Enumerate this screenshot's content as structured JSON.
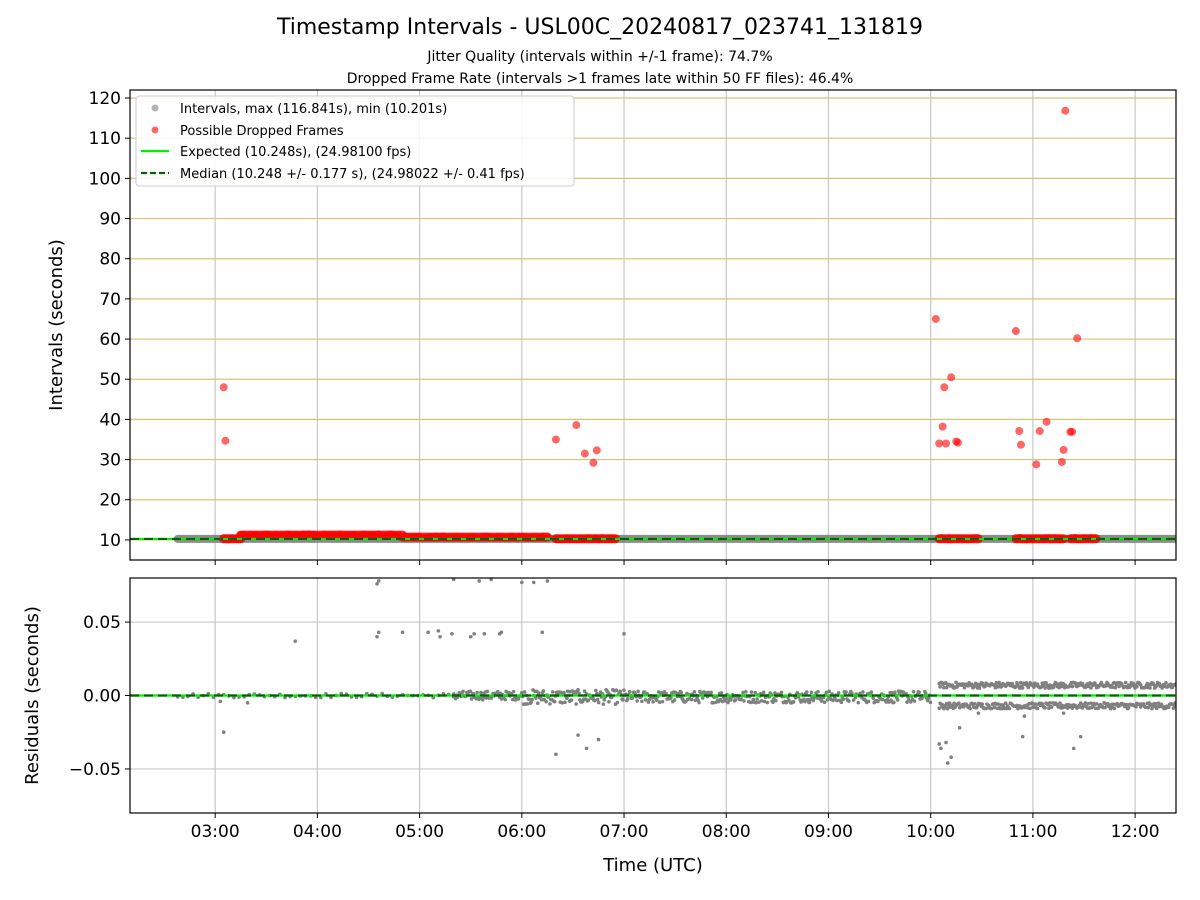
{
  "figure": {
    "title": "Timestamp Intervals - USL00C_20240817_023741_131819",
    "subtitle1": "Jitter Quality (intervals within +/-1 frame): 74.7%",
    "subtitle2": "Dropped Frame Rate (intervals >1 frames late within 50 FF files): 46.4%"
  },
  "chart_data": [
    {
      "type": "scatter",
      "ylabel": "Intervals (seconds)",
      "xlim": [
        "02:10",
        "12:24"
      ],
      "ylim": [
        5,
        122
      ],
      "xticks": [
        "03:00",
        "04:00",
        "05:00",
        "06:00",
        "07:00",
        "08:00",
        "09:00",
        "10:00",
        "11:00",
        "12:00"
      ],
      "yticks": [
        10,
        20,
        30,
        40,
        50,
        60,
        70,
        80,
        90,
        100,
        110,
        120
      ],
      "horizontal_gridlines_color": "#d4c47a",
      "vertical_gridlines_color": "#c8c8c8",
      "legend_position": "upper-left",
      "legend": [
        "Intervals, max (116.841s), min (10.201s)",
        "Possible Dropped Frames",
        "Expected (10.248s), (24.98100 fps)",
        "Median (10.248 +/- 0.177 s), (24.98022 +/- 0.41 fps)"
      ],
      "colors": {
        "intervals": "#808080",
        "dropped": "#ff0000",
        "expected": "#00ee00",
        "median": "#006400"
      },
      "expected_interval": 10.248,
      "median_interval": 10.248,
      "interval_band": {
        "x_start": "02:38",
        "x_end": "12:24",
        "value": 10.25
      },
      "dropped_frame_bands": [
        {
          "x_start": "03:05",
          "x_end": "03:15",
          "value": 10.3
        },
        {
          "x_start": "03:15",
          "x_end": "04:50",
          "value": 11.2
        },
        {
          "x_start": "04:50",
          "x_end": "06:15",
          "value": 10.7
        },
        {
          "x_start": "06:20",
          "x_end": "06:55",
          "value": 10.3
        },
        {
          "x_start": "10:05",
          "x_end": "10:28",
          "value": 10.3
        },
        {
          "x_start": "10:50",
          "x_end": "11:18",
          "value": 10.3
        },
        {
          "x_start": "11:22",
          "x_end": "11:37",
          "value": 10.3
        }
      ],
      "dropped_frames": [
        {
          "x": "03:05",
          "y": 48
        },
        {
          "x": "03:06",
          "y": 34.7
        },
        {
          "x": "06:20",
          "y": 35
        },
        {
          "x": "06:32",
          "y": 38.6
        },
        {
          "x": "06:37",
          "y": 31.5
        },
        {
          "x": "06:42",
          "y": 29.2
        },
        {
          "x": "06:44",
          "y": 32.3
        },
        {
          "x": "10:03",
          "y": 65
        },
        {
          "x": "10:05",
          "y": 34
        },
        {
          "x": "10:07",
          "y": 38.2
        },
        {
          "x": "10:08",
          "y": 48
        },
        {
          "x": "10:09",
          "y": 34
        },
        {
          "x": "10:12",
          "y": 50.5
        },
        {
          "x": "10:15",
          "y": 34.5
        },
        {
          "x": "10:16",
          "y": 34.2
        },
        {
          "x": "10:50",
          "y": 62
        },
        {
          "x": "10:52",
          "y": 37.1
        },
        {
          "x": "10:53",
          "y": 33.7
        },
        {
          "x": "11:02",
          "y": 28.8
        },
        {
          "x": "11:04",
          "y": 37.1
        },
        {
          "x": "11:08",
          "y": 39.4
        },
        {
          "x": "11:17",
          "y": 29.4
        },
        {
          "x": "11:18",
          "y": 32.4
        },
        {
          "x": "11:19",
          "y": 116.841
        },
        {
          "x": "11:22",
          "y": 36.9
        },
        {
          "x": "11:23",
          "y": 36.9
        },
        {
          "x": "11:26",
          "y": 60.2
        }
      ]
    },
    {
      "type": "scatter",
      "xlabel": "Time (UTC)",
      "ylabel": "Residuals (seconds)",
      "xlim": [
        "02:10",
        "12:24"
      ],
      "ylim": [
        -0.08,
        0.08
      ],
      "xticks": [
        "03:00",
        "04:00",
        "05:00",
        "06:00",
        "07:00",
        "08:00",
        "09:00",
        "10:00",
        "11:00",
        "12:00"
      ],
      "yticks": [
        0.05,
        0.0,
        -0.05
      ],
      "ytick_labels": [
        "0.05",
        "0.00",
        "−0.05"
      ],
      "grid": true,
      "colors": {
        "residuals": "#808080",
        "zero_line": "#00ee00",
        "median_line": "#006400"
      },
      "residual_bands": [
        {
          "x_start": "02:38",
          "x_end": "05:20",
          "center": 0.0,
          "spread": 0.0015
        },
        {
          "x_start": "05:20",
          "x_end": "06:00",
          "center": 0.0,
          "spread": 0.003
        },
        {
          "x_start": "06:00",
          "x_end": "07:00",
          "center": -0.001,
          "spread": 0.005
        },
        {
          "x_start": "07:00",
          "x_end": "10:00",
          "center": -0.001,
          "spread": 0.004
        },
        {
          "x_start": "10:05",
          "x_end": "12:24",
          "center": 0.007,
          "spread": 0.002
        },
        {
          "x_start": "10:05",
          "x_end": "12:24",
          "center": -0.007,
          "spread": 0.002
        }
      ],
      "residual_points": [
        {
          "x": "03:03",
          "y": -0.004
        },
        {
          "x": "03:05",
          "y": -0.025
        },
        {
          "x": "03:19",
          "y": -0.005
        },
        {
          "x": "03:47",
          "y": 0.037
        },
        {
          "x": "04:35",
          "y": 0.04
        },
        {
          "x": "04:36",
          "y": 0.043
        },
        {
          "x": "04:35",
          "y": 0.076
        },
        {
          "x": "04:36",
          "y": 0.078
        },
        {
          "x": "04:50",
          "y": 0.043
        },
        {
          "x": "05:05",
          "y": 0.043
        },
        {
          "x": "05:11",
          "y": 0.044
        },
        {
          "x": "05:12",
          "y": 0.04
        },
        {
          "x": "05:19",
          "y": 0.042
        },
        {
          "x": "05:20",
          "y": 0.079
        },
        {
          "x": "05:30",
          "y": 0.04
        },
        {
          "x": "05:32",
          "y": 0.042
        },
        {
          "x": "05:35",
          "y": 0.078
        },
        {
          "x": "05:38",
          "y": 0.042
        },
        {
          "x": "05:42",
          "y": 0.079
        },
        {
          "x": "05:47",
          "y": 0.042
        },
        {
          "x": "05:48",
          "y": 0.043
        },
        {
          "x": "06:00",
          "y": 0.077
        },
        {
          "x": "06:07",
          "y": 0.077
        },
        {
          "x": "06:12",
          "y": 0.043
        },
        {
          "x": "06:15",
          "y": 0.078
        },
        {
          "x": "06:20",
          "y": -0.04
        },
        {
          "x": "06:33",
          "y": -0.027
        },
        {
          "x": "06:38",
          "y": -0.036
        },
        {
          "x": "06:45",
          "y": -0.03
        },
        {
          "x": "07:00",
          "y": 0.042
        },
        {
          "x": "10:05",
          "y": -0.033
        },
        {
          "x": "10:06",
          "y": -0.036
        },
        {
          "x": "10:09",
          "y": -0.032
        },
        {
          "x": "10:10",
          "y": -0.046
        },
        {
          "x": "10:12",
          "y": -0.042
        },
        {
          "x": "10:17",
          "y": -0.022
        },
        {
          "x": "10:28",
          "y": -0.012
        },
        {
          "x": "10:54",
          "y": -0.028
        },
        {
          "x": "10:55",
          "y": -0.014
        },
        {
          "x": "11:18",
          "y": -0.012
        },
        {
          "x": "11:24",
          "y": -0.036
        },
        {
          "x": "11:28",
          "y": -0.028
        }
      ]
    }
  ]
}
